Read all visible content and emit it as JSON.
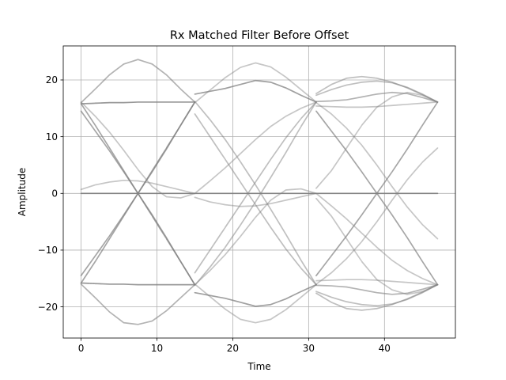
{
  "chart_data": {
    "type": "line",
    "title": "Rx Matched Filter Before Offset",
    "xlabel": "Time",
    "ylabel": "Amplitude",
    "xlim": [
      -2.35,
      49.35
    ],
    "ylim": [
      -25.5,
      26.0
    ],
    "xticks": [
      0,
      10,
      20,
      30,
      40
    ],
    "xtick_labels": [
      "0",
      "10",
      "20",
      "30",
      "40"
    ],
    "yticks": [
      -20,
      -10,
      0,
      10,
      20
    ],
    "ytick_labels": [
      "−20",
      "−10",
      "0",
      "10",
      "20"
    ],
    "grid": true,
    "legend": "none",
    "series_color": "#808080",
    "symbol_period": 16,
    "symbol_levels": [
      -16.1,
      0,
      16.1
    ],
    "traces": [
      {
        "values": [
          16.0,
          18.4,
          20.9,
          22.8,
          23.6,
          22.8,
          20.9,
          18.4,
          16.1
        ],
        "opacity": 0.6
      },
      {
        "values": [
          16.0,
          18.2,
          20.4,
          22.2,
          23.0,
          22.3,
          20.5,
          18.3,
          16.1
        ],
        "opacity": 0.45
      },
      {
        "values": [
          17.6,
          19.2,
          20.3,
          20.6,
          20.3,
          19.6,
          18.6,
          17.4,
          16.1
        ],
        "opacity": 0.5
      },
      {
        "values": [
          17.3,
          18.3,
          19.1,
          19.6,
          19.8,
          19.5,
          18.7,
          17.5,
          16.1
        ],
        "opacity": 0.5
      },
      {
        "values": [
          15.4,
          15.3,
          15.2,
          15.2,
          15.3,
          15.5,
          15.7,
          15.9,
          16.1
        ],
        "opacity": 0.45
      },
      {
        "values": [
          16.2,
          16.3,
          16.5,
          17.0,
          17.5,
          17.8,
          17.6,
          16.9,
          16.1
        ],
        "opacity": 0.6
      },
      {
        "values": [
          15.8,
          15.9,
          16.0,
          16.0,
          16.1,
          16.1,
          16.1,
          16.1,
          16.1
        ],
        "opacity": 0.8
      },
      {
        "values": [
          17.5,
          18.0,
          18.5,
          19.2,
          19.9,
          19.6,
          18.6,
          17.3,
          16.1
        ],
        "opacity": 0.75
      },
      {
        "values": [
          -16.0,
          -18.4,
          -20.9,
          -22.8,
          -23.1,
          -22.5,
          -20.7,
          -18.4,
          -16.1
        ],
        "opacity": 0.6
      },
      {
        "values": [
          -16.0,
          -18.2,
          -20.4,
          -22.2,
          -22.8,
          -22.2,
          -20.5,
          -18.3,
          -16.1
        ],
        "opacity": 0.45
      },
      {
        "values": [
          -17.6,
          -19.2,
          -20.3,
          -20.6,
          -20.3,
          -19.6,
          -18.6,
          -17.4,
          -16.1
        ],
        "opacity": 0.5
      },
      {
        "values": [
          -17.3,
          -18.3,
          -19.1,
          -19.6,
          -19.8,
          -19.5,
          -18.7,
          -17.5,
          -16.1
        ],
        "opacity": 0.5
      },
      {
        "values": [
          -15.4,
          -15.3,
          -15.2,
          -15.2,
          -15.3,
          -15.5,
          -15.7,
          -15.9,
          -16.1
        ],
        "opacity": 0.45
      },
      {
        "values": [
          -16.2,
          -16.3,
          -16.5,
          -17.0,
          -17.5,
          -17.8,
          -17.6,
          -16.9,
          -16.1
        ],
        "opacity": 0.6
      },
      {
        "values": [
          -15.8,
          -15.9,
          -16.0,
          -16.0,
          -16.1,
          -16.1,
          -16.1,
          -16.1,
          -16.1
        ],
        "opacity": 0.8
      },
      {
        "values": [
          -17.5,
          -18.0,
          -18.5,
          -19.2,
          -19.9,
          -19.6,
          -18.6,
          -17.3,
          -16.1
        ],
        "opacity": 0.75
      },
      {
        "values": [
          14.5,
          11.0,
          7.5,
          3.8,
          0.0,
          -3.8,
          -7.8,
          -12.0,
          -16.1
        ],
        "opacity": 0.7
      },
      {
        "values": [
          15.8,
          12.0,
          8.0,
          4.0,
          0.0,
          -4.0,
          -8.0,
          -12.0,
          -16.1
        ],
        "opacity": 0.7
      },
      {
        "values": [
          14.0,
          10.0,
          6.0,
          2.0,
          -2.0,
          -6.0,
          -9.8,
          -13.2,
          -16.1
        ],
        "opacity": 0.5
      },
      {
        "values": [
          16.2,
          13.0,
          9.5,
          5.6,
          1.5,
          -2.8,
          -7.2,
          -11.8,
          -16.1
        ],
        "opacity": 0.5
      },
      {
        "values": [
          -14.5,
          -11.0,
          -7.5,
          -3.8,
          0.0,
          3.8,
          7.8,
          12.0,
          16.1
        ],
        "opacity": 0.7
      },
      {
        "values": [
          -15.8,
          -12.0,
          -8.0,
          -4.0,
          0.0,
          4.0,
          8.0,
          12.0,
          16.1
        ],
        "opacity": 0.7
      },
      {
        "values": [
          -14.0,
          -10.0,
          -6.0,
          -2.0,
          2.0,
          6.0,
          9.8,
          13.2,
          16.1
        ],
        "opacity": 0.5
      },
      {
        "values": [
          -16.2,
          -13.0,
          -9.5,
          -5.6,
          -1.5,
          2.8,
          7.2,
          11.8,
          16.1
        ],
        "opacity": 0.5
      },
      {
        "values": [
          16.0,
          14.0,
          11.5,
          8.5,
          5.0,
          1.2,
          -2.4,
          -5.5,
          -8.0
        ],
        "opacity": 0.45
      },
      {
        "values": [
          -16.0,
          -14.0,
          -11.5,
          -8.5,
          -5.0,
          -1.2,
          2.4,
          5.5,
          8.0
        ],
        "opacity": 0.45
      },
      {
        "values": [
          0.0,
          0.0,
          0.0,
          0.0,
          0.0,
          0.0,
          0.0,
          0.0,
          0.0
        ],
        "opacity": 0.95
      },
      {
        "values": [
          0.7,
          1.5,
          2.0,
          2.3,
          2.2,
          1.8,
          1.2,
          0.6,
          0.0
        ],
        "opacity": 0.45
      },
      {
        "values": [
          -0.7,
          -1.5,
          -2.0,
          -2.3,
          -2.2,
          -1.8,
          -1.2,
          -0.6,
          0.0
        ],
        "opacity": 0.45
      },
      {
        "values": [
          0.0,
          2.2,
          4.5,
          7.0,
          9.5,
          11.8,
          13.6,
          15.0,
          16.1
        ],
        "opacity": 0.45
      },
      {
        "values": [
          0.0,
          -2.2,
          -4.5,
          -7.0,
          -9.5,
          -11.8,
          -13.6,
          -15.0,
          -16.1
        ],
        "opacity": 0.45
      },
      {
        "values": [
          -0.9,
          -4.0,
          -8.0,
          -12.0,
          -15.2,
          -17.0,
          -17.8,
          -17.3,
          -16.1
        ],
        "opacity": 0.45
      },
      {
        "values": [
          0.9,
          4.0,
          8.0,
          12.0,
          15.2,
          17.0,
          17.8,
          17.3,
          16.1
        ],
        "opacity": 0.45
      },
      {
        "values": [
          16.1,
          13.6,
          10.8,
          7.6,
          4.2,
          1.2,
          -0.6,
          -0.8,
          0.0
        ],
        "opacity": 0.45
      },
      {
        "values": [
          -16.1,
          -13.6,
          -10.8,
          -7.6,
          -4.2,
          -1.2,
          0.6,
          0.8,
          0.0
        ],
        "opacity": 0.45
      }
    ],
    "trace_pattern": [
      [
        0,
        6,
        8,
        14,
        16,
        17,
        20,
        21,
        26,
        27,
        33
      ],
      [
        1,
        7,
        9,
        15,
        18,
        19,
        22,
        23,
        26,
        28,
        29,
        34
      ],
      [
        2,
        3,
        4,
        5,
        10,
        11,
        12,
        13,
        16,
        20,
        24,
        25,
        26,
        30,
        31,
        32
      ]
    ]
  }
}
